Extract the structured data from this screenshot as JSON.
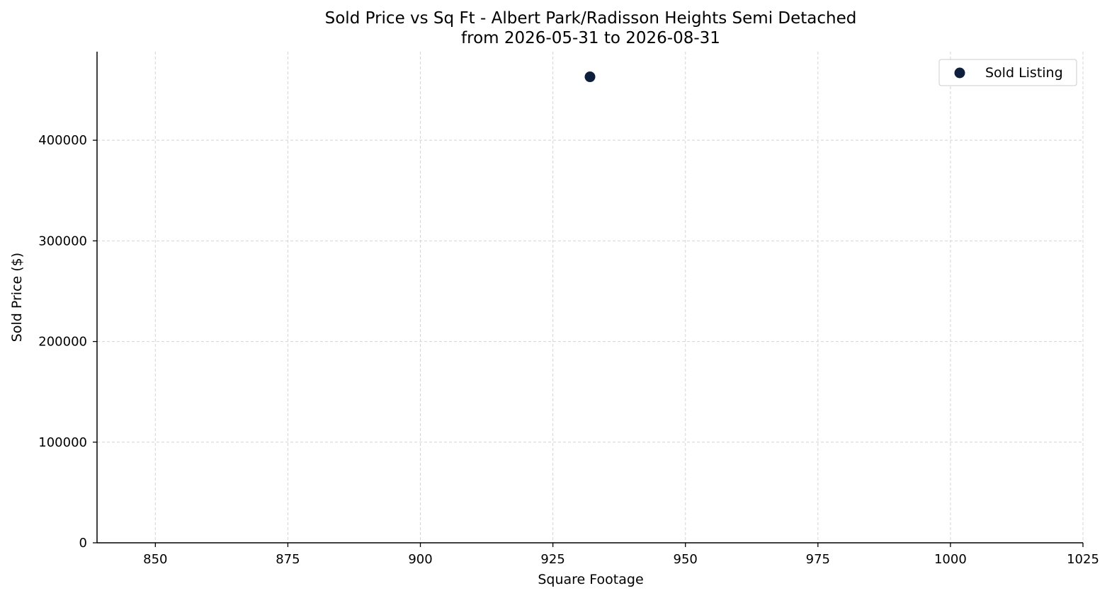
{
  "chart_data": {
    "type": "scatter",
    "title": "Sold Price vs Sq Ft - Albert Park/Radisson Heights Semi Detached",
    "subtitle": "from 2026-05-31 to 2026-08-31",
    "xlabel": "Square Footage",
    "ylabel": "Sold Price ($)",
    "xlim": [
      839,
      1025
    ],
    "ylim": [
      0,
      488000
    ],
    "xticks": [
      850,
      875,
      900,
      925,
      950,
      975,
      1000,
      1025
    ],
    "yticks": [
      0,
      100000,
      200000,
      300000,
      400000
    ],
    "grid": true,
    "legend": "top-right",
    "series": [
      {
        "name": "Sold Listing",
        "color": "#0d1f3c",
        "points": [
          {
            "x": 932,
            "y": 463000
          }
        ]
      }
    ]
  }
}
